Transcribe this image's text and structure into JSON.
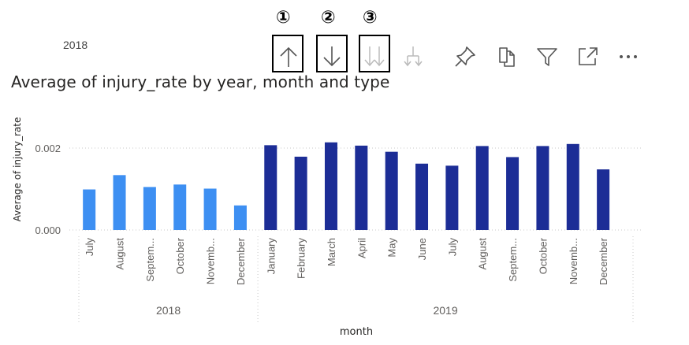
{
  "legend": {
    "visible_label": "2018"
  },
  "callouts": [
    "①",
    "②",
    "③"
  ],
  "toolbar": {
    "icons": [
      "sort-ascending-icon",
      "sort-descending-icon",
      "expand-all-down-icon",
      "expand-next-level-icon",
      "pin-icon",
      "copy-icon",
      "filter-icon",
      "focus-mode-icon",
      "more-options-icon"
    ]
  },
  "colors": {
    "series_2018": "#3d8ff2",
    "series_2019": "#1c2d96",
    "grid": "#c8c8c8",
    "text": "#605e5c"
  },
  "chart_data": {
    "type": "bar",
    "title": "Average of injury_rate by year, month and type",
    "xlabel": "month",
    "ylabel": "Average of injury_rate",
    "ylim": [
      0,
      0.0025
    ],
    "yticks": [
      "0.000",
      "0.002"
    ],
    "ytick_values": [
      0,
      0.002
    ],
    "grid": true,
    "groups": [
      {
        "name": "2018",
        "color": "#3d8ff2",
        "categories": [
          "July",
          "August",
          "Septem...",
          "October",
          "Novemb...",
          "December"
        ],
        "values": [
          0.00099,
          0.00134,
          0.00105,
          0.00111,
          0.00101,
          0.0006
        ]
      },
      {
        "name": "2019",
        "color": "#1c2d96",
        "categories": [
          "January",
          "February",
          "March",
          "April",
          "May",
          "June",
          "July",
          "August",
          "Septem...",
          "October",
          "Novemb...",
          "December"
        ],
        "values": [
          0.00207,
          0.00179,
          0.00214,
          0.00206,
          0.00191,
          0.00162,
          0.00157,
          0.00205,
          0.00178,
          0.00205,
          0.0021,
          0.00148
        ]
      }
    ]
  }
}
